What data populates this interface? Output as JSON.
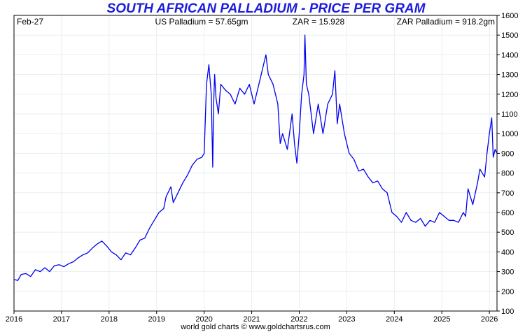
{
  "title": "SOUTH AFRICAN PALLADIUM - PRICE PER GRAM",
  "info": {
    "date": "Feb-27",
    "us_price": "US Palladium = 57.65gm",
    "zar_rate": "ZAR = 15.928",
    "zar_price": "ZAR Palladium = 918.2gm"
  },
  "footer": "world gold charts © www.goldchartsrus.com",
  "colors": {
    "title": "#1c1cdc",
    "line": "#0000ee",
    "grid": "#e8eef0"
  },
  "chart_data": {
    "type": "line",
    "title": "SOUTH AFRICAN PALLADIUM - PRICE PER GRAM",
    "xlabel": "",
    "ylabel": "",
    "xlim": [
      2016.0,
      2026.16
    ],
    "ylim": [
      100,
      1600
    ],
    "x_ticks": [
      "2016",
      "2017",
      "2018",
      "2019",
      "2020",
      "2021",
      "2022",
      "2023",
      "2024",
      "2025",
      "2026"
    ],
    "y_ticks": [
      100,
      200,
      300,
      400,
      500,
      600,
      700,
      800,
      900,
      1000,
      1100,
      1200,
      1300,
      1400,
      1500,
      1600
    ],
    "grid": true,
    "y_axis_side": "right",
    "series": [
      {
        "x": [
          2016.0,
          2016.08,
          2016.15,
          2016.25,
          2016.35,
          2016.45,
          2016.55,
          2016.65,
          2016.75,
          2016.85,
          2016.95,
          2017.05,
          2017.15,
          2017.25,
          2017.35,
          2017.45,
          2017.55,
          2017.65,
          2017.75,
          2017.85,
          2017.95,
          2018.05,
          2018.15,
          2018.25,
          2018.35,
          2018.45,
          2018.55,
          2018.65,
          2018.75,
          2018.85,
          2018.95,
          2019.05,
          2019.15,
          2019.2,
          2019.3,
          2019.35,
          2019.45,
          2019.55,
          2019.65,
          2019.75,
          2019.85,
          2019.95,
          2020.0,
          2020.05,
          2020.1,
          2020.15,
          2020.18,
          2020.2,
          2020.22,
          2020.25,
          2020.3,
          2020.35,
          2020.45,
          2020.55,
          2020.65,
          2020.75,
          2020.85,
          2020.95,
          2021.05,
          2021.15,
          2021.25,
          2021.3,
          2021.35,
          2021.45,
          2021.55,
          2021.6,
          2021.65,
          2021.75,
          2021.85,
          2021.9,
          2021.95,
          2022.0,
          2022.05,
          2022.1,
          2022.12,
          2022.15,
          2022.2,
          2022.3,
          2022.4,
          2022.5,
          2022.6,
          2022.7,
          2022.75,
          2022.8,
          2022.85,
          2022.95,
          2023.05,
          2023.15,
          2023.25,
          2023.35,
          2023.45,
          2023.55,
          2023.65,
          2023.75,
          2023.85,
          2023.95,
          2024.05,
          2024.15,
          2024.25,
          2024.35,
          2024.45,
          2024.55,
          2024.65,
          2024.75,
          2024.85,
          2024.95,
          2025.05,
          2025.15,
          2025.25,
          2025.35,
          2025.45,
          2025.5,
          2025.55,
          2025.65,
          2025.75,
          2025.8,
          2025.85,
          2025.9,
          2025.95,
          2026.0,
          2026.05,
          2026.08,
          2026.12,
          2026.16
        ],
        "values": [
          260,
          255,
          285,
          290,
          275,
          310,
          300,
          320,
          300,
          330,
          335,
          325,
          340,
          350,
          370,
          385,
          395,
          420,
          440,
          455,
          430,
          400,
          385,
          360,
          395,
          385,
          420,
          460,
          470,
          520,
          560,
          600,
          620,
          680,
          730,
          650,
          700,
          750,
          790,
          840,
          870,
          880,
          900,
          1250,
          1350,
          1200,
          830,
          1150,
          1300,
          1180,
          1100,
          1250,
          1220,
          1200,
          1150,
          1230,
          1200,
          1250,
          1150,
          1250,
          1350,
          1400,
          1300,
          1250,
          1150,
          950,
          1000,
          920,
          1100,
          950,
          850,
          1000,
          1200,
          1300,
          1500,
          1250,
          1200,
          1000,
          1150,
          1000,
          1150,
          1200,
          1320,
          1050,
          1150,
          1000,
          900,
          870,
          810,
          820,
          780,
          750,
          760,
          720,
          700,
          600,
          580,
          550,
          600,
          560,
          550,
          570,
          530,
          560,
          550,
          600,
          580,
          560,
          560,
          550,
          600,
          580,
          720,
          640,
          750,
          820,
          800,
          780,
          900,
          1000,
          1080,
          880,
          920,
          900
        ]
      }
    ]
  }
}
